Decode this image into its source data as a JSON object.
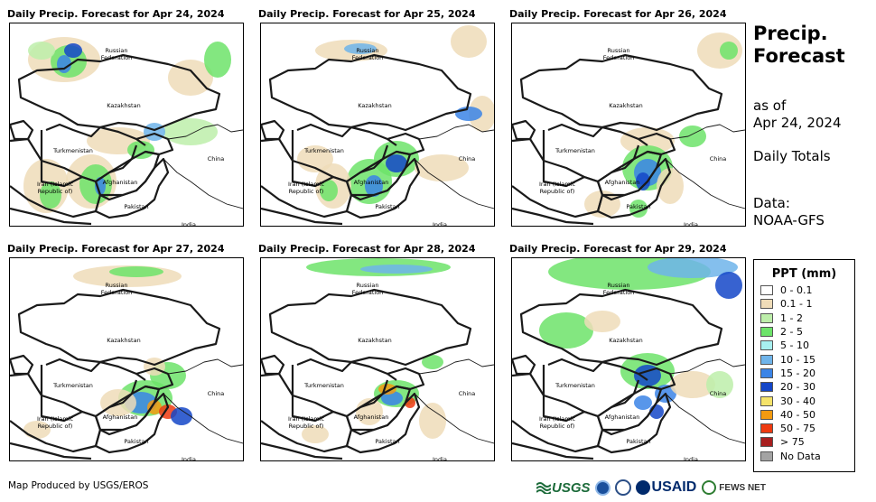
{
  "panels": [
    {
      "title": "Daily Precip. Forecast for Apr 24, 2024",
      "labels": {
        "russia": "Russian",
        "federation": "Federation",
        "kazakhstan": "Kazakhstan",
        "turkmenistan": "Turkmenistan",
        "china": "China",
        "iran": "Iran  (Islamic",
        "iran2": "Republic of)",
        "afghanistan": "Afghanistan",
        "pakistan": "Pakistan",
        "india": "India"
      }
    },
    {
      "title": "Daily Precip. Forecast for Apr 25, 2024",
      "labels": {
        "russia": "Russian",
        "federation": "Federation",
        "kazakhstan": "Kazakhstan",
        "turkmenistan": "Turkmenistan",
        "china": "China",
        "iran": "Iran  (Islamic",
        "iran2": "Republic of)",
        "afghanistan": "Afghanistan",
        "pakistan": "Pakistan",
        "india": "India"
      }
    },
    {
      "title": "Daily Precip. Forecast for Apr 26, 2024",
      "labels": {
        "russia": "Russian",
        "federation": "Federation",
        "kazakhstan": "Kazakhstan",
        "turkmenistan": "Turkmenistan",
        "china": "China",
        "iran": "Iran  (Islamic",
        "iran2": "Republic of)",
        "afghanistan": "Afghanistan",
        "pakistan": "Pakistan",
        "india": "India"
      }
    },
    {
      "title": "Daily Precip. Forecast for Apr 27, 2024",
      "labels": {
        "russia": "Russian",
        "federation": "Federation",
        "kazakhstan": "Kazakhstan",
        "turkmenistan": "Turkmenistan",
        "china": "China",
        "iran": "Iran  (Islamic",
        "iran2": "Republic of)",
        "afghanistan": "Afghanistan",
        "pakistan": "Pakistan",
        "india": "India"
      }
    },
    {
      "title": "Daily Precip. Forecast for Apr 28, 2024",
      "labels": {
        "russia": "Russian",
        "federation": "Federation",
        "kazakhstan": "Kazakhstan",
        "turkmenistan": "Turkmenistan",
        "china": "China",
        "iran": "Iran  (Islamic",
        "iran2": "Republic of)",
        "afghanistan": "Afghanistan",
        "pakistan": "Pakistan",
        "india": "India"
      }
    },
    {
      "title": "Daily Precip. Forecast for Apr 29, 2024",
      "labels": {
        "russia": "Russian",
        "federation": "Federation",
        "kazakhstan": "Kazakhstan",
        "turkmenistan": "Turkmenistan",
        "china": "China",
        "iran": "Iran  (Islamic",
        "iran2": "Republic of)",
        "afghanistan": "Afghanistan",
        "pakistan": "Pakistan",
        "india": "India"
      }
    }
  ],
  "side": {
    "title_line1": "Precip.",
    "title_line2": "Forecast",
    "as_of_line1": "as of",
    "as_of_line2": "Apr 24, 2024",
    "totals": "Daily Totals",
    "data_line1": "Data:",
    "data_line2": "NOAA-GFS"
  },
  "legend": {
    "title": "PPT (mm)",
    "items": [
      {
        "label": "0 - 0.1",
        "color": "#ffffff"
      },
      {
        "label": "0.1 - 1",
        "color": "#efdcb8"
      },
      {
        "label": "1 - 2",
        "color": "#bdeeaa"
      },
      {
        "label": "2 - 5",
        "color": "#6de36a"
      },
      {
        "label": "5 - 10",
        "color": "#a8f0f0"
      },
      {
        "label": "10 - 15",
        "color": "#6fb4ea"
      },
      {
        "label": "15 - 20",
        "color": "#3b84e6"
      },
      {
        "label": "20 - 30",
        "color": "#1446c8"
      },
      {
        "label": "30 - 40",
        "color": "#f5e36a"
      },
      {
        "label": "40 - 50",
        "color": "#f39a10"
      },
      {
        "label": "50 - 75",
        "color": "#ee3a10"
      },
      {
        "label": "> 75",
        "color": "#a81f1f"
      },
      {
        "label": "No Data",
        "color": "#a3a3a3"
      }
    ]
  },
  "footer": {
    "credit": "Map Produced by USGS/EROS",
    "logo_usgs": "USGS",
    "logo_usaid": "USAID",
    "logo_fews": "FEWS NET"
  }
}
